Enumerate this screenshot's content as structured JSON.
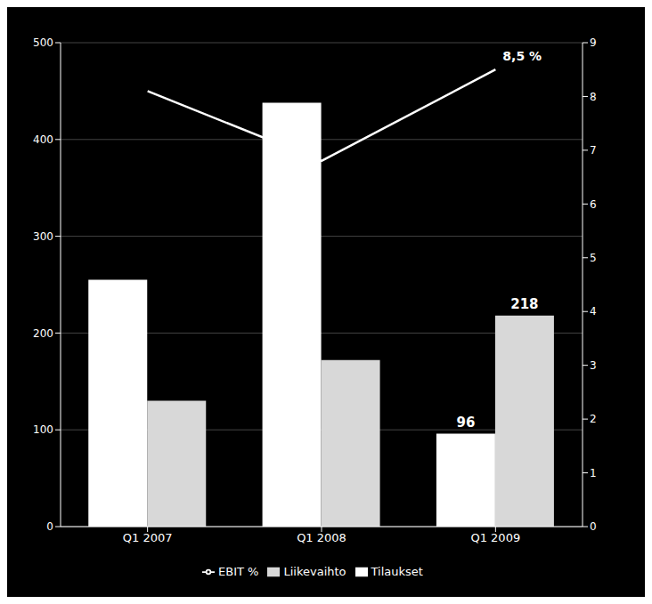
{
  "chart_data": {
    "type": "bar",
    "categories": [
      "Q1 2007",
      "Q1 2008",
      "Q1 2009"
    ],
    "series": [
      {
        "name": "Tilaukset",
        "type": "bar",
        "color": "#ffffff",
        "values": [
          255,
          438,
          96
        ],
        "value_labels": [
          null,
          null,
          "96"
        ]
      },
      {
        "name": "Liikevaihto",
        "type": "bar",
        "color": "#d8d8d8",
        "values": [
          130,
          172,
          218
        ],
        "value_labels": [
          null,
          null,
          "218"
        ]
      },
      {
        "name": "EBIT %",
        "type": "line",
        "axis": "y2",
        "color": "#ffffff",
        "values": [
          8.1,
          6.8,
          8.5
        ],
        "value_labels": [
          null,
          null,
          "8,5 %"
        ]
      }
    ],
    "ylim": [
      0,
      500
    ],
    "yticks": [
      0,
      100,
      200,
      300,
      400,
      500
    ],
    "y2lim": [
      0,
      9
    ],
    "y2ticks": [
      0,
      1,
      2,
      3,
      4,
      5,
      6,
      7,
      8,
      9
    ],
    "grid": true,
    "legend": "bottom"
  }
}
